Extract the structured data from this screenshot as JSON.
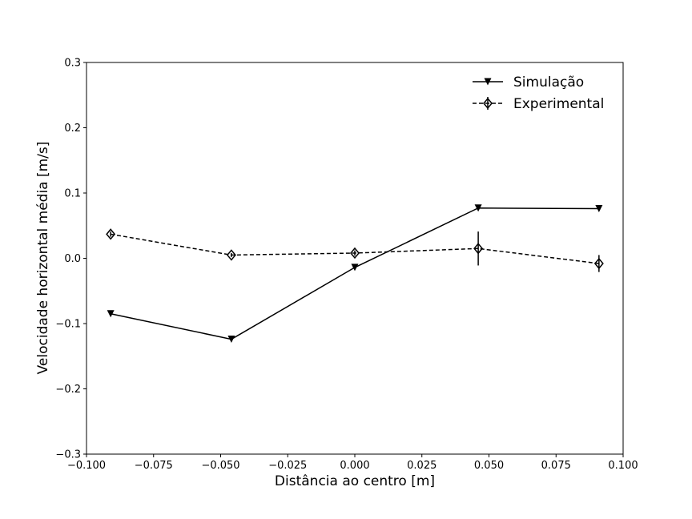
{
  "chart_data": {
    "type": "line",
    "xlabel": "Distância ao centro [m]",
    "ylabel": "Velocidade horizontal média [m/s]",
    "xlim": [
      -0.1,
      0.1
    ],
    "ylim": [
      -0.3,
      0.3
    ],
    "x_ticks": [
      -0.1,
      -0.075,
      -0.05,
      -0.025,
      0.0,
      0.025,
      0.05,
      0.075,
      0.1
    ],
    "x_tick_labels": [
      "−0.100",
      "−0.075",
      "−0.050",
      "−0.025",
      "0.000",
      "0.025",
      "0.050",
      "0.075",
      "0.100"
    ],
    "y_ticks": [
      -0.3,
      -0.2,
      -0.1,
      0.0,
      0.1,
      0.2,
      0.3
    ],
    "y_tick_labels": [
      "−0.3",
      "−0.2",
      "−0.1",
      "0.0",
      "0.1",
      "0.2",
      "0.3"
    ],
    "grid": false,
    "legend_position": "top-right",
    "series": [
      {
        "name": "Simulação",
        "line_style": "solid",
        "marker": "triangle-down",
        "color": "#000000",
        "x": [
          -0.091,
          -0.046,
          0.0,
          0.046,
          0.091
        ],
        "y": [
          -0.085,
          -0.124,
          -0.014,
          0.077,
          0.076
        ]
      },
      {
        "name": "Experimental",
        "line_style": "dashed",
        "marker": "thin-diamond",
        "color": "#000000",
        "x": [
          -0.091,
          -0.046,
          0.0,
          0.046,
          0.091
        ],
        "y": [
          0.037,
          0.005,
          0.008,
          0.015,
          -0.008
        ],
        "yerr": [
          0.004,
          0.003,
          0.004,
          0.026,
          0.013
        ]
      }
    ]
  }
}
